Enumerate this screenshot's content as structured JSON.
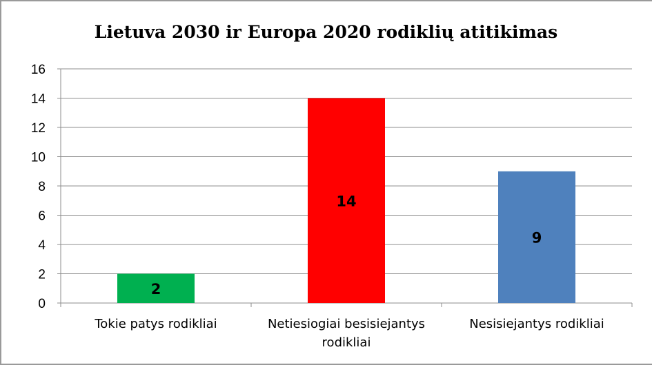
{
  "chart_data": {
    "type": "bar",
    "title": "Lietuva 2030 ir Europa 2020 rodiklių atitikimas",
    "categories": [
      [
        "Tokie patys rodikliai"
      ],
      [
        "Netiesiogiai besisiejantys",
        "rodikliai"
      ],
      [
        "Nesisiejantys rodikliai"
      ]
    ],
    "values": [
      2,
      14,
      9
    ],
    "colors": [
      "#00b050",
      "#ff0000",
      "#4f81bd"
    ],
    "data_labels": [
      "2",
      "14",
      "9"
    ],
    "yticks": [
      "0",
      "2",
      "4",
      "6",
      "8",
      "10",
      "12",
      "14",
      "16"
    ],
    "ylim": [
      0,
      16
    ],
    "grid": true,
    "legend": "none"
  }
}
